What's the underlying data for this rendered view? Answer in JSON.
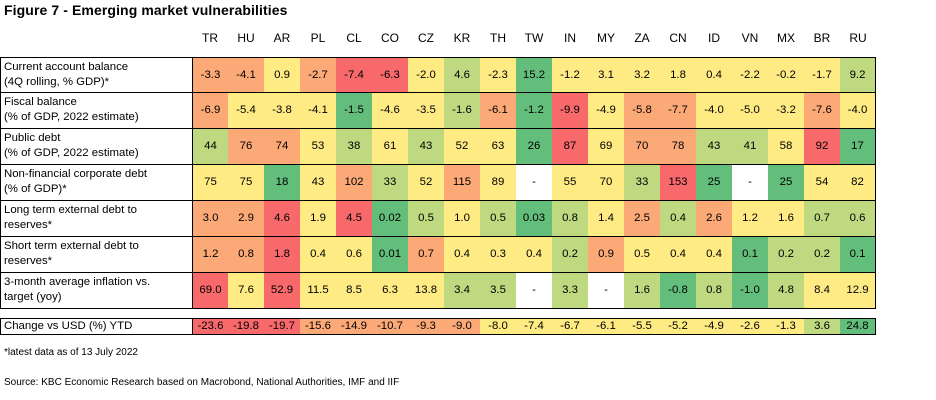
{
  "title": "Figure 7 - Emerging market vulnerabilities",
  "colors": {
    "red": "#f8696b",
    "orange": "#fbaa77",
    "yellow": "#ffeb84",
    "lightgreen": "#bfd981",
    "green": "#63be7b",
    "white": "#ffffff"
  },
  "chart_data": {
    "type": "table",
    "columns": [
      "TR",
      "HU",
      "AR",
      "PL",
      "CL",
      "CO",
      "CZ",
      "KR",
      "TH",
      "TW",
      "IN",
      "MY",
      "ZA",
      "CN",
      "ID",
      "VN",
      "MX",
      "BR",
      "RU"
    ],
    "rows": [
      {
        "label": [
          "Current account balance",
          "(4Q rolling, % GDP)*"
        ],
        "values": [
          "-3.3",
          "-4.1",
          "0.9",
          "-2.7",
          "-7.4",
          "-6.3",
          "-2.0",
          "4.6",
          "-2.3",
          "15.2",
          "-1.2",
          "3.1",
          "3.2",
          "1.8",
          "0.4",
          "-2.2",
          "-0.2",
          "-1.7",
          "9.2"
        ],
        "colors": [
          "orange",
          "orange",
          "yellow",
          "orange",
          "red",
          "red",
          "yellow",
          "lightgreen",
          "yellow",
          "green",
          "yellow",
          "yellow",
          "yellow",
          "yellow",
          "yellow",
          "yellow",
          "yellow",
          "yellow",
          "lightgreen"
        ]
      },
      {
        "label": [
          "Fiscal balance",
          "(% of GDP, 2022 estimate)"
        ],
        "values": [
          "-6.9",
          "-5.4",
          "-3.8",
          "-4.1",
          "-1.5",
          "-4.6",
          "-3.5",
          "-1.6",
          "-6.1",
          "-1.2",
          "-9.9",
          "-4.9",
          "-5.8",
          "-7.7",
          "-4.0",
          "-5.0",
          "-3.2",
          "-7.6",
          "-4.0"
        ],
        "colors": [
          "orange",
          "yellow",
          "yellow",
          "yellow",
          "green",
          "yellow",
          "yellow",
          "lightgreen",
          "orange",
          "green",
          "red",
          "yellow",
          "orange",
          "orange",
          "yellow",
          "yellow",
          "yellow",
          "orange",
          "yellow"
        ]
      },
      {
        "label": [
          "Public debt",
          "(% of GDP, 2022 estimate)"
        ],
        "values": [
          "44",
          "76",
          "74",
          "53",
          "38",
          "61",
          "43",
          "52",
          "63",
          "26",
          "87",
          "69",
          "70",
          "78",
          "43",
          "41",
          "58",
          "92",
          "17"
        ],
        "colors": [
          "lightgreen",
          "orange",
          "orange",
          "yellow",
          "lightgreen",
          "yellow",
          "lightgreen",
          "yellow",
          "yellow",
          "green",
          "red",
          "yellow",
          "orange",
          "orange",
          "lightgreen",
          "lightgreen",
          "yellow",
          "red",
          "green"
        ]
      },
      {
        "label": [
          "Non-financial corporate debt",
          "(% of GDP)*"
        ],
        "values": [
          "75",
          "75",
          "18",
          "43",
          "102",
          "33",
          "52",
          "115",
          "89",
          "-",
          "55",
          "70",
          "33",
          "153",
          "25",
          "-",
          "25",
          "54",
          "82"
        ],
        "colors": [
          "yellow",
          "yellow",
          "green",
          "yellow",
          "orange",
          "lightgreen",
          "yellow",
          "orange",
          "yellow",
          "white",
          "yellow",
          "yellow",
          "lightgreen",
          "red",
          "green",
          "white",
          "green",
          "yellow",
          "yellow"
        ]
      },
      {
        "label": [
          "Long term external debt  to",
          "reserves*"
        ],
        "values": [
          "3.0",
          "2.9",
          "4.6",
          "1.9",
          "4.5",
          "0.02",
          "0.5",
          "1.0",
          "0.5",
          "0.03",
          "0.8",
          "1.4",
          "2.5",
          "0.4",
          "2.6",
          "1.2",
          "1.6",
          "0.7",
          "0.6"
        ],
        "colors": [
          "orange",
          "orange",
          "red",
          "yellow",
          "red",
          "green",
          "lightgreen",
          "yellow",
          "lightgreen",
          "green",
          "lightgreen",
          "yellow",
          "orange",
          "lightgreen",
          "orange",
          "yellow",
          "yellow",
          "lightgreen",
          "lightgreen"
        ]
      },
      {
        "label": [
          "Short term external debt  to",
          "reserves*"
        ],
        "values": [
          "1.2",
          "0.8",
          "1.8",
          "0.4",
          "0.6",
          "0.01",
          "0.7",
          "0.4",
          "0.3",
          "0.4",
          "0.2",
          "0.9",
          "0.5",
          "0.4",
          "0.4",
          "0.1",
          "0.2",
          "0.2",
          "0.1"
        ],
        "colors": [
          "orange",
          "orange",
          "red",
          "yellow",
          "yellow",
          "green",
          "orange",
          "yellow",
          "yellow",
          "yellow",
          "lightgreen",
          "orange",
          "yellow",
          "yellow",
          "yellow",
          "green",
          "lightgreen",
          "lightgreen",
          "green"
        ]
      },
      {
        "label": [
          "3-month average inflation vs.",
          "target (yoy)"
        ],
        "values": [
          "69.0",
          "7.6",
          "52.9",
          "11.5",
          "8.5",
          "6.3",
          "13.8",
          "3.4",
          "3.5",
          "-",
          "3.3",
          "-",
          "1.6",
          "-0.8",
          "0.8",
          "-1.0",
          "4.8",
          "8.4",
          "12.9"
        ],
        "colors": [
          "red",
          "yellow",
          "red",
          "yellow",
          "yellow",
          "yellow",
          "yellow",
          "lightgreen",
          "lightgreen",
          "white",
          "lightgreen",
          "white",
          "lightgreen",
          "green",
          "lightgreen",
          "green",
          "lightgreen",
          "yellow",
          "yellow"
        ]
      }
    ],
    "fx_row": {
      "label": "Change vs USD (%) YTD",
      "values": [
        "-23.6",
        "-19.8",
        "-19.7",
        "-15.6",
        "-14.9",
        "-10.7",
        "-9.3",
        "-9.0",
        "-8.0",
        "-7.4",
        "-6.7",
        "-6.1",
        "-5.5",
        "-5.2",
        "-4.9",
        "-2.6",
        "-1.3",
        "3.6",
        "24.8"
      ],
      "colors": [
        "red",
        "red",
        "red",
        "orange",
        "orange",
        "orange",
        "orange",
        "orange",
        "yellow",
        "yellow",
        "yellow",
        "yellow",
        "yellow",
        "yellow",
        "yellow",
        "yellow",
        "yellow",
        "lightgreen",
        "green"
      ]
    }
  },
  "note": "*latest data as of 13 July 2022",
  "source": "Source: KBC Economic Research based on Macrobond, National Authorities, IMF and IIF"
}
